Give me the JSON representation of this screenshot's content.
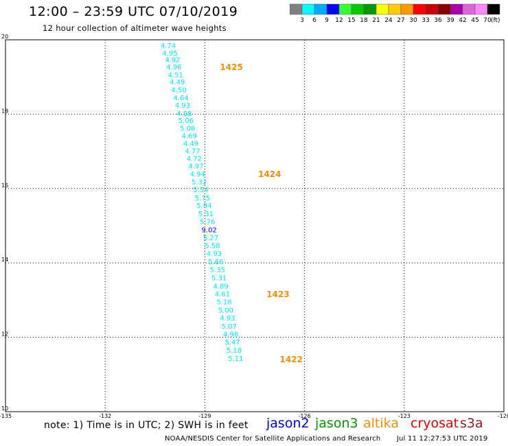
{
  "header": {
    "title": "12:00 – 23:59 UTC 07/10/2019",
    "subtitle": "12 hour collection of altimeter wave heights"
  },
  "color_scale": {
    "labels": [
      "3",
      "6",
      "9",
      "12",
      "15",
      "18",
      "21",
      "24",
      "27",
      "30",
      "33",
      "36",
      "39",
      "42",
      "45",
      "70"
    ],
    "unit": "(ft)",
    "colors": [
      "#808080",
      "#00ffff",
      "#00aaff",
      "#0000ff",
      "#33ff33",
      "#00cc00",
      "#009900",
      "#ffff00",
      "#ffcc00",
      "#ff9900",
      "#ff0000",
      "#cc0000",
      "#880000",
      "#aa00aa",
      "#dd66dd",
      "#ff88ff",
      "#000000"
    ]
  },
  "footer": {
    "note": "note: 1) Time is in UTC; 2) SWH is in feet",
    "credit": "NOAA/NESDIS Center for Satellite Applications and Research",
    "timestamp": "Jul 11 12:27:53 UTC 2019"
  },
  "legend": [
    "jason2",
    "jason3",
    "altika",
    "cryosat",
    "s3a"
  ],
  "chart_data": {
    "type": "scatter",
    "xlim": [
      -135,
      -120
    ],
    "ylim": [
      10,
      20
    ],
    "x_ticks": [
      -135,
      -132,
      -129,
      -126,
      -123,
      -120
    ],
    "x_tick_labels": [
      "-135",
      "-132",
      "-129",
      "-126",
      "-123",
      "-120"
    ],
    "y_ticks": [
      10,
      12,
      14,
      16,
      18,
      20
    ],
    "y_tick_labels": [
      "10",
      "12",
      "14",
      "16",
      "18",
      "20"
    ],
    "grid": true,
    "series": [
      {
        "name": "altika",
        "color": "#00e5ee",
        "points": [
          {
            "x": -130.1,
            "y": 19.85,
            "label": "4.74"
          },
          {
            "x": -130.05,
            "y": 19.65,
            "label": "4.95"
          },
          {
            "x": -129.97,
            "y": 19.47,
            "label": "4.92"
          },
          {
            "x": -129.93,
            "y": 19.28,
            "label": "4.96"
          },
          {
            "x": -129.88,
            "y": 19.07,
            "label": "4.51"
          },
          {
            "x": -129.83,
            "y": 18.87,
            "label": "4.49"
          },
          {
            "x": -129.78,
            "y": 18.66,
            "label": "4.50"
          },
          {
            "x": -129.72,
            "y": 18.45,
            "label": "4.64"
          },
          {
            "x": -129.67,
            "y": 18.25,
            "label": "4.93"
          },
          {
            "x": -129.62,
            "y": 18.03,
            "label": "4.88"
          },
          {
            "x": -129.57,
            "y": 17.84,
            "label": "5.06"
          },
          {
            "x": -129.52,
            "y": 17.63,
            "label": "5.08"
          },
          {
            "x": -129.47,
            "y": 17.43,
            "label": "4.69"
          },
          {
            "x": -129.42,
            "y": 17.22,
            "label": "4.49"
          },
          {
            "x": -129.37,
            "y": 17.02,
            "label": "4.77"
          },
          {
            "x": -129.32,
            "y": 16.82,
            "label": "4.72"
          },
          {
            "x": -129.27,
            "y": 16.61,
            "label": "4.97"
          },
          {
            "x": -129.22,
            "y": 16.4,
            "label": "4.94"
          },
          {
            "x": -129.17,
            "y": 16.19,
            "label": "5.32"
          },
          {
            "x": -129.12,
            "y": 15.98,
            "label": "5.54"
          },
          {
            "x": -129.07,
            "y": 15.76,
            "label": "5.75"
          },
          {
            "x": -129.02,
            "y": 15.55,
            "label": "5.94"
          },
          {
            "x": -128.97,
            "y": 15.33,
            "label": "5.31"
          },
          {
            "x": -128.92,
            "y": 15.12,
            "label": "5.76"
          },
          {
            "x": -128.87,
            "y": 14.9,
            "label": "9.02",
            "color": "#0000ee"
          },
          {
            "x": -128.82,
            "y": 14.69,
            "label": "5.27"
          },
          {
            "x": -128.77,
            "y": 14.47,
            "label": "5.58"
          },
          {
            "x": -128.72,
            "y": 14.26,
            "label": "4.93"
          },
          {
            "x": -128.67,
            "y": 14.04,
            "label": "5.66"
          },
          {
            "x": -128.62,
            "y": 13.83,
            "label": "5.35"
          },
          {
            "x": -128.57,
            "y": 13.61,
            "label": "5.31"
          },
          {
            "x": -128.52,
            "y": 13.39,
            "label": "4.89"
          },
          {
            "x": -128.47,
            "y": 13.17,
            "label": "4.61"
          },
          {
            "x": -128.42,
            "y": 12.96,
            "label": "5.18"
          },
          {
            "x": -128.37,
            "y": 12.74,
            "label": "5.00"
          },
          {
            "x": -128.32,
            "y": 12.53,
            "label": "4.93"
          },
          {
            "x": -128.27,
            "y": 12.31,
            "label": "5.07"
          },
          {
            "x": -128.22,
            "y": 12.09,
            "label": "4.98"
          },
          {
            "x": -128.17,
            "y": 11.88,
            "label": "5.47"
          },
          {
            "x": -128.12,
            "y": 11.66,
            "label": "5.18"
          },
          {
            "x": -128.07,
            "y": 11.44,
            "label": "5.11"
          }
        ]
      }
    ],
    "time_annotations": [
      {
        "x": -128.2,
        "y": 19.28,
        "label": "1425",
        "color": "#f09000"
      },
      {
        "x": -127.05,
        "y": 16.4,
        "label": "1424",
        "color": "#f09000"
      },
      {
        "x": -126.8,
        "y": 13.17,
        "label": "1423",
        "color": "#f09000"
      },
      {
        "x": -126.4,
        "y": 11.42,
        "label": "1422",
        "color": "#f09000"
      }
    ]
  }
}
